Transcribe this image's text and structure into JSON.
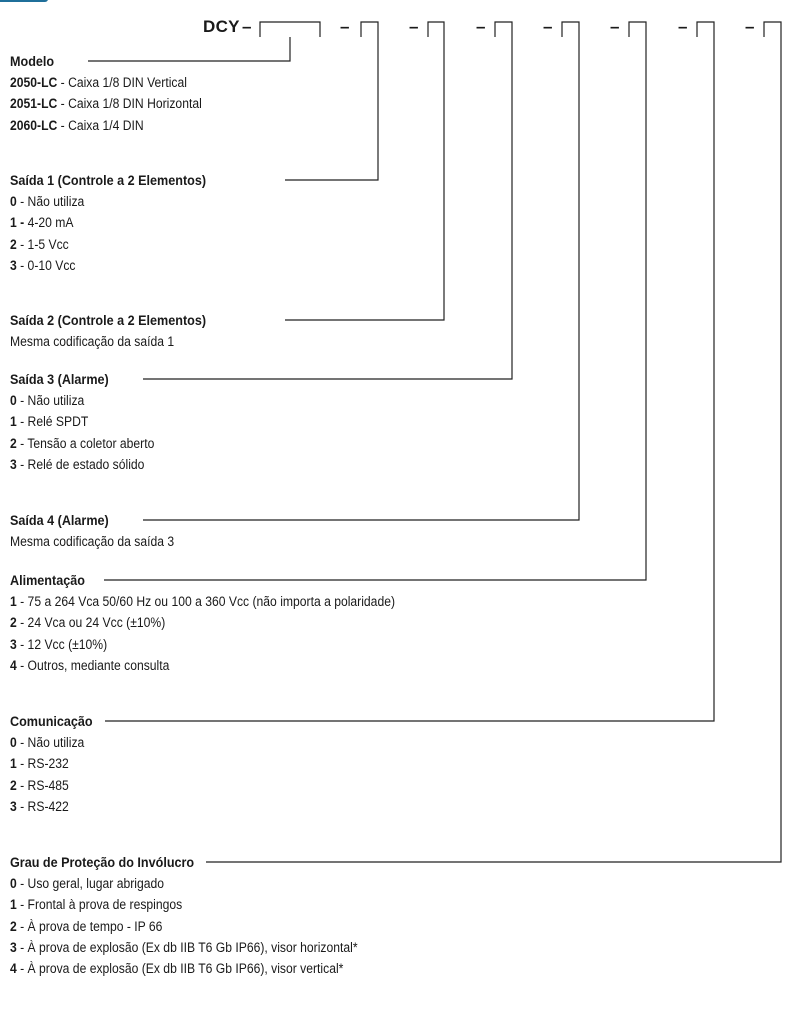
{
  "header": {
    "prefix": "DCY",
    "separator": "–"
  },
  "sections": [
    {
      "id": "modelo",
      "title": "Modelo",
      "lines": [
        {
          "code": "2050-LC",
          "text": " - Caixa 1/8 DIN Vertical"
        },
        {
          "code": "2051-LC",
          "text": " - Caixa 1/8 DIN Horizontal"
        },
        {
          "code": "2060-LC",
          "text": " - Caixa 1/4 DIN"
        }
      ]
    },
    {
      "id": "saida1",
      "title": "Saída 1 (Controle a 2 Elementos)",
      "lines": [
        {
          "code": "0",
          "text": " - Não utiliza"
        },
        {
          "code": "1 -",
          "text": " 4-20 mA"
        },
        {
          "code": "2",
          "text": " - 1-5 Vcc"
        },
        {
          "code": "3",
          "text": " - 0-10 Vcc"
        }
      ]
    },
    {
      "id": "saida2",
      "title": "Saída 2 (Controle a 2 Elementos)",
      "lines": [
        {
          "code": "",
          "text": "Mesma codificação da saída 1"
        }
      ]
    },
    {
      "id": "saida3",
      "title": "Saída 3 (Alarme)",
      "lines": [
        {
          "code": "0",
          "text": " - Não utiliza"
        },
        {
          "code": "1",
          "text": " - Relé SPDT"
        },
        {
          "code": "2",
          "text": " - Tensão a coletor aberto"
        },
        {
          "code": "3",
          "text": " - Relé de estado sólido"
        }
      ]
    },
    {
      "id": "saida4",
      "title": "Saída 4 (Alarme)",
      "lines": [
        {
          "code": "",
          "text": "Mesma codificação da saída 3"
        }
      ]
    },
    {
      "id": "alimentacao",
      "title": "Alimentação",
      "lines": [
        {
          "code": "1",
          "text": " - 75 a 264 Vca 50/60 Hz ou 100 a 360 Vcc (não importa a polaridade)"
        },
        {
          "code": "2",
          "text": " - 24 Vca ou 24 Vcc (±10%)"
        },
        {
          "code": "3",
          "text": " - 12 Vcc (±10%)"
        },
        {
          "code": "4",
          "text": " - Outros, mediante consulta"
        }
      ]
    },
    {
      "id": "comunicacao",
      "title": "Comunicação",
      "lines": [
        {
          "code": "0",
          "text": " - Não utiliza"
        },
        {
          "code": "1",
          "text": " - RS-232"
        },
        {
          "code": "2",
          "text": " - RS-485"
        },
        {
          "code": "3",
          "text": " - RS-422"
        }
      ]
    },
    {
      "id": "protecao",
      "title": "Grau de Proteção do Invólucro",
      "lines": [
        {
          "code": "0",
          "text": " - Uso geral, lugar abrigado"
        },
        {
          "code": "1",
          "text": " - Frontal à prova de respingos"
        },
        {
          "code": "2",
          "text": " - À prova de tempo - IP 66"
        },
        {
          "code": "3",
          "text": " - À prova de explosão (Ex db IIB T6 Gb IP66), visor horizontal*"
        },
        {
          "code": "4",
          "text": " - À prova de explosão (Ex db IIB T6 Gb IP66), visor vertical*"
        }
      ]
    }
  ]
}
